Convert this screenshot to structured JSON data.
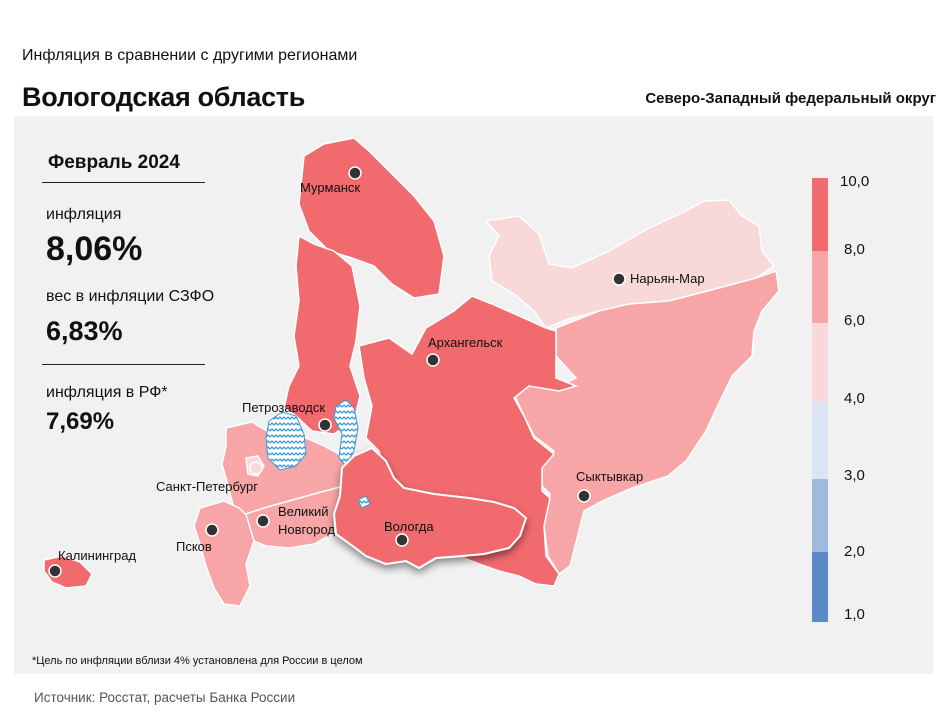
{
  "header": {
    "subtitle": "Инфляция  в сравнении  с другими регионами",
    "title": "Вологодская  область",
    "district": "Северо-Западный федеральный округ"
  },
  "stats": {
    "period": "Февраль 2024",
    "inflation_label": "инфляция",
    "inflation_value": "8,06%",
    "weight_label": "вес в инфляции  СЗФО",
    "weight_value": "6,83%",
    "rf_label": "инфляция  в РФ*",
    "rf_value": "7,69%"
  },
  "legend": {
    "ticks": [
      "10,0",
      "8,0",
      "6,0",
      "4,0",
      "3,0",
      "2,0",
      "1,0"
    ],
    "colors": [
      "#f06a6e",
      "#f7a5a6",
      "#f9d8d9",
      "#dbe4f3",
      "#9fbadf",
      "#5b8ac7"
    ]
  },
  "map": {
    "colors": {
      "high": "#f06a6e",
      "mid": "#f7a5a6",
      "low": "#f9d8d9",
      "water": "#3a9ad9"
    },
    "cities": [
      "Мурманск",
      "Нарьян-Мар",
      "Архангельск",
      "Петрозаводск",
      "Санкт-Петербург",
      "Сыктывкар",
      "Великий",
      "Новгород",
      "Вологда",
      "Псков",
      "Калининград"
    ]
  },
  "footnote": "*Цель по инфляции вблизи 4% установлена для России в целом",
  "source": "Источник: Росстат, расчеты Банка России"
}
